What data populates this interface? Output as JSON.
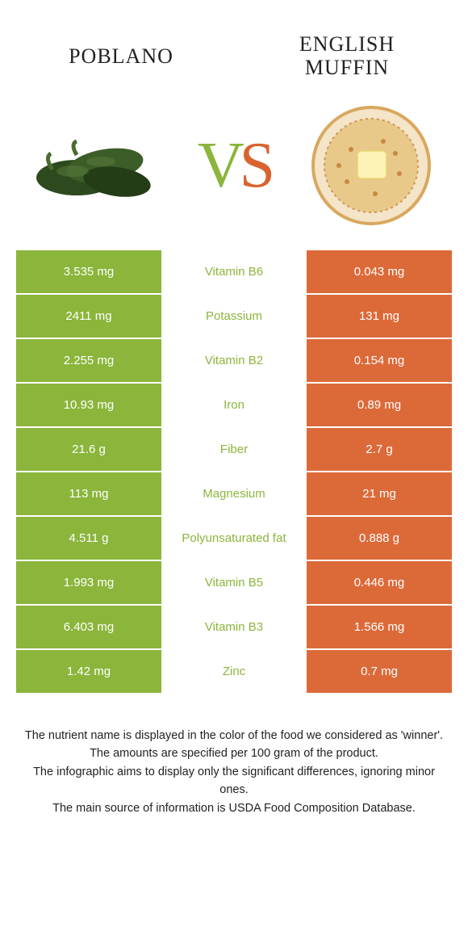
{
  "colors": {
    "left_bg": "#8bb53b",
    "right_bg": "#dc6a39",
    "left_winner_text": "#8bb53b",
    "right_winner_text": "#dc6a39",
    "vs_v": "#8bb53b",
    "vs_s": "#d9632f",
    "title_color": "#222222",
    "footer_color": "#222222",
    "background": "#ffffff"
  },
  "titles": {
    "left": "Poblano",
    "right": "English Muffin"
  },
  "vs": {
    "v": "V",
    "s": "S"
  },
  "images": {
    "left_alt": "poblano-peppers",
    "right_alt": "english-muffin-butter"
  },
  "rows": [
    {
      "left": "3.535 mg",
      "label": "Vitamin B6",
      "right": "0.043 mg",
      "winner": "left"
    },
    {
      "left": "2411 mg",
      "label": "Potassium",
      "right": "131 mg",
      "winner": "left"
    },
    {
      "left": "2.255 mg",
      "label": "Vitamin B2",
      "right": "0.154 mg",
      "winner": "left"
    },
    {
      "left": "10.93 mg",
      "label": "Iron",
      "right": "0.89 mg",
      "winner": "left"
    },
    {
      "left": "21.6 g",
      "label": "Fiber",
      "right": "2.7 g",
      "winner": "left"
    },
    {
      "left": "113 mg",
      "label": "Magnesium",
      "right": "21 mg",
      "winner": "left"
    },
    {
      "left": "4.511 g",
      "label": "Polyunsaturated fat",
      "right": "0.888 g",
      "winner": "left"
    },
    {
      "left": "1.993 mg",
      "label": "Vitamin B5",
      "right": "0.446 mg",
      "winner": "left"
    },
    {
      "left": "6.403 mg",
      "label": "Vitamin B3",
      "right": "1.566 mg",
      "winner": "left"
    },
    {
      "left": "1.42 mg",
      "label": "Zinc",
      "right": "0.7 mg",
      "winner": "left"
    }
  ],
  "footer": {
    "line1": "The nutrient name is displayed in the color of the food we considered as 'winner'.",
    "line2": "The amounts are specified per 100 gram of the product.",
    "line3": "The infographic aims to display only the significant differences, ignoring minor ones.",
    "line4": "The main source of information is USDA Food Composition Database."
  }
}
